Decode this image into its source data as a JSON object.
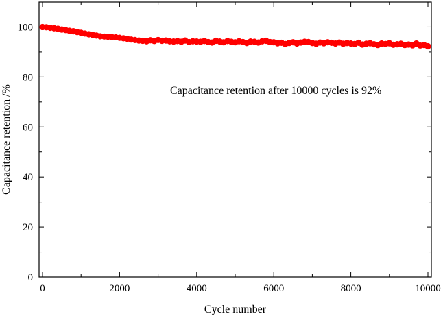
{
  "chart_data": {
    "type": "scatter",
    "title": "",
    "xlabel": "Cycle number",
    "ylabel": "Capacitance retention /%",
    "xlim": [
      0,
      10000
    ],
    "ylim": [
      0,
      110
    ],
    "x_ticks": [
      0,
      2000,
      4000,
      6000,
      8000,
      10000
    ],
    "y_ticks": [
      0,
      20,
      40,
      60,
      80,
      100
    ],
    "x_tick_labels": [
      "0",
      "2000",
      "4000",
      "6000",
      "8000",
      "10000"
    ],
    "y_tick_labels": [
      "0",
      "20",
      "40",
      "60",
      "80",
      "100"
    ],
    "annotation": "Capacitance retention after 10000 cycles is 92%",
    "series": [
      {
        "name": "Capacitance retention",
        "color": "#ff0000",
        "x": [
          0,
          100,
          200,
          300,
          400,
          500,
          600,
          700,
          800,
          900,
          1000,
          1100,
          1200,
          1300,
          1400,
          1500,
          1600,
          1700,
          1800,
          1900,
          2000,
          2100,
          2200,
          2300,
          2400,
          2500,
          2600,
          2700,
          2800,
          2900,
          3000,
          3100,
          3200,
          3300,
          3400,
          3500,
          3600,
          3700,
          3800,
          3900,
          4000,
          4100,
          4200,
          4300,
          4400,
          4500,
          4600,
          4700,
          4800,
          4900,
          5000,
          5100,
          5200,
          5300,
          5400,
          5500,
          5600,
          5700,
          5800,
          5900,
          6000,
          6100,
          6200,
          6300,
          6400,
          6500,
          6600,
          6700,
          6800,
          6900,
          7000,
          7100,
          7200,
          7300,
          7400,
          7500,
          7600,
          7700,
          7800,
          7900,
          8000,
          8100,
          8200,
          8300,
          8400,
          8500,
          8600,
          8700,
          8800,
          8900,
          9000,
          9100,
          9200,
          9300,
          9400,
          9500,
          9600,
          9700,
          9800,
          9900,
          10000
        ],
        "y": [
          100.0,
          99.9,
          99.7,
          99.5,
          99.3,
          99.0,
          98.8,
          98.5,
          98.3,
          98.0,
          97.7,
          97.4,
          97.1,
          96.9,
          96.6,
          96.3,
          96.2,
          96.1,
          96.0,
          95.9,
          95.7,
          95.5,
          95.3,
          95.0,
          94.8,
          94.6,
          94.5,
          94.3,
          94.7,
          94.4,
          94.8,
          94.5,
          94.6,
          94.3,
          94.2,
          94.4,
          94.1,
          94.6,
          94.0,
          94.3,
          94.2,
          94.1,
          94.4,
          94.0,
          93.8,
          94.5,
          94.2,
          93.9,
          94.4,
          94.1,
          93.9,
          94.3,
          94.0,
          93.6,
          94.2,
          94.1,
          93.8,
          94.3,
          94.5,
          94.0,
          93.9,
          93.5,
          93.7,
          93.2,
          93.6,
          93.9,
          93.4,
          93.8,
          94.1,
          94.0,
          93.6,
          93.3,
          93.8,
          93.5,
          93.9,
          93.7,
          93.4,
          93.8,
          93.3,
          93.6,
          93.4,
          93.2,
          93.7,
          93.0,
          93.3,
          93.5,
          93.1,
          92.8,
          93.4,
          93.2,
          93.5,
          92.9,
          93.1,
          93.3,
          92.8,
          93.0,
          92.7,
          93.4,
          92.6,
          92.8,
          92.3
        ]
      }
    ]
  }
}
